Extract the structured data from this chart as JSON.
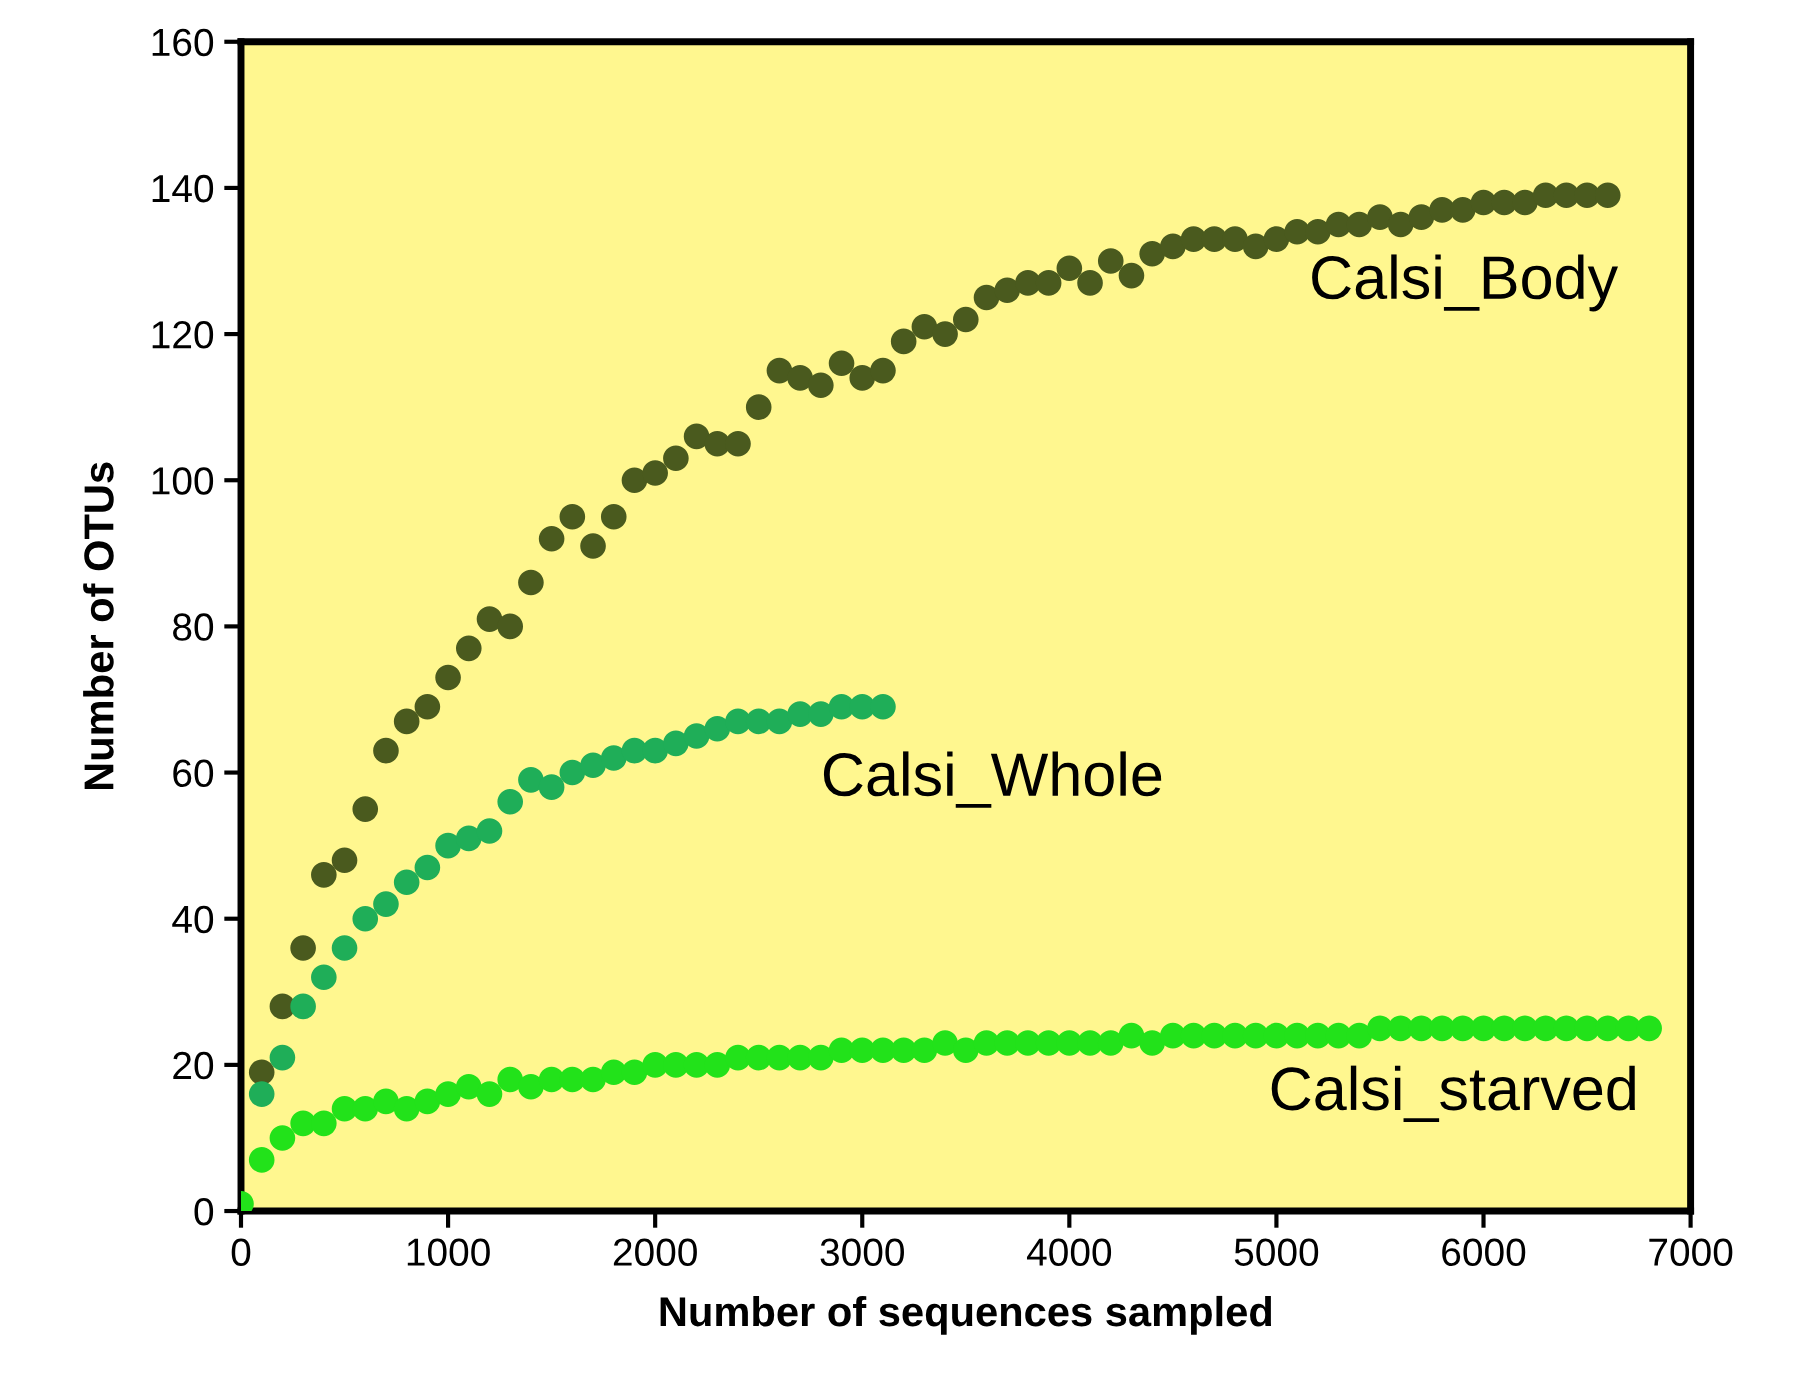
{
  "chart_data": {
    "type": "scatter",
    "xlabel": "Number of sequences sampled",
    "ylabel": "Number of OTUs",
    "xlim": [
      0,
      7000
    ],
    "ylim": [
      0,
      160
    ],
    "xticks": [
      0,
      1000,
      2000,
      3000,
      4000,
      5000,
      6000,
      7000
    ],
    "yticks": [
      0,
      20,
      40,
      60,
      80,
      100,
      120,
      140,
      160
    ],
    "grid": false,
    "legend": false,
    "marker": "circle",
    "series": [
      {
        "name": "Calsi_Body",
        "color": "#4a5a1e",
        "x": [
          100,
          200,
          300,
          400,
          500,
          600,
          700,
          800,
          900,
          1000,
          1100,
          1200,
          1300,
          1400,
          1500,
          1600,
          1700,
          1800,
          1900,
          2000,
          2100,
          2200,
          2300,
          2400,
          2500,
          2600,
          2700,
          2800,
          2900,
          3000,
          3100,
          3200,
          3300,
          3400,
          3500,
          3600,
          3700,
          3800,
          3900,
          4000,
          4100,
          4200,
          4300,
          4400,
          4500,
          4600,
          4700,
          4800,
          4900,
          5000,
          5100,
          5200,
          5300,
          5400,
          5500,
          5600,
          5700,
          5800,
          5900,
          6000,
          6100,
          6200,
          6300,
          6400,
          6500,
          6600
        ],
        "values": [
          19,
          28,
          36,
          46,
          48,
          55,
          63,
          67,
          69,
          73,
          77,
          81,
          80,
          86,
          92,
          95,
          91,
          95,
          100,
          101,
          103,
          106,
          105,
          105,
          110,
          115,
          114,
          113,
          116,
          114,
          115,
          119,
          121,
          120,
          122,
          125,
          126,
          127,
          127,
          129,
          127,
          130,
          128,
          131,
          132,
          133,
          133,
          133,
          132,
          133,
          134,
          134,
          135,
          135,
          136,
          135,
          136,
          137,
          137,
          138,
          138,
          138,
          139,
          139,
          139,
          139
        ]
      },
      {
        "name": "Calsi_Whole",
        "color": "#1fae58",
        "x": [
          100,
          200,
          300,
          400,
          500,
          600,
          700,
          800,
          900,
          1000,
          1100,
          1200,
          1300,
          1400,
          1500,
          1600,
          1700,
          1800,
          1900,
          2000,
          2100,
          2200,
          2300,
          2400,
          2500,
          2600,
          2700,
          2800,
          2900,
          3000,
          3100
        ],
        "values": [
          16,
          21,
          28,
          32,
          36,
          40,
          42,
          45,
          47,
          50,
          51,
          52,
          56,
          59,
          58,
          60,
          61,
          62,
          63,
          63,
          64,
          65,
          66,
          67,
          67,
          67,
          68,
          68,
          69,
          69,
          69
        ]
      },
      {
        "name": "Calsi_starved",
        "color": "#22e21a",
        "x": [
          0,
          100,
          200,
          300,
          400,
          500,
          600,
          700,
          800,
          900,
          1000,
          1100,
          1200,
          1300,
          1400,
          1500,
          1600,
          1700,
          1800,
          1900,
          2000,
          2100,
          2200,
          2300,
          2400,
          2500,
          2600,
          2700,
          2800,
          2900,
          3000,
          3100,
          3200,
          3300,
          3400,
          3500,
          3600,
          3700,
          3800,
          3900,
          4000,
          4100,
          4200,
          4300,
          4400,
          4500,
          4600,
          4700,
          4800,
          4900,
          5000,
          5100,
          5200,
          5300,
          5400,
          5500,
          5600,
          5700,
          5800,
          5900,
          6000,
          6100,
          6200,
          6300,
          6400,
          6500,
          6600,
          6700,
          6800
        ],
        "values": [
          1,
          7,
          10,
          12,
          12,
          14,
          14,
          15,
          14,
          15,
          16,
          17,
          16,
          18,
          17,
          18,
          18,
          18,
          19,
          19,
          20,
          20,
          20,
          20,
          21,
          21,
          21,
          21,
          21,
          22,
          22,
          22,
          22,
          22,
          23,
          22,
          23,
          23,
          23,
          23,
          23,
          23,
          23,
          24,
          23,
          24,
          24,
          24,
          24,
          24,
          24,
          24,
          24,
          24,
          24,
          25,
          25,
          25,
          25,
          25,
          25,
          25,
          25,
          25,
          25,
          25,
          25,
          25,
          25
        ]
      }
    ]
  }
}
